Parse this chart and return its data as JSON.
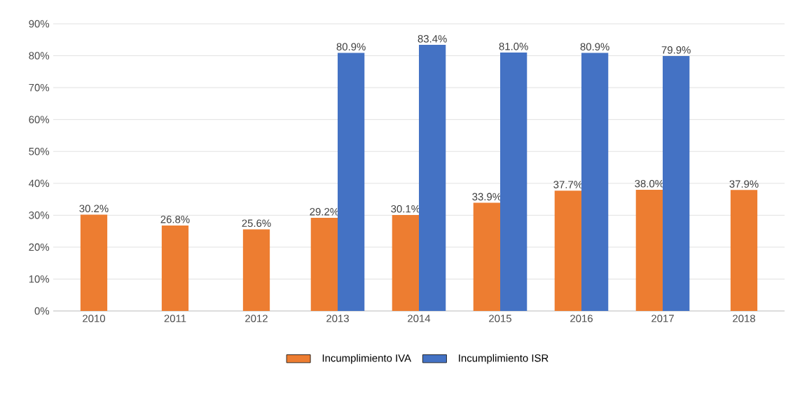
{
  "chart_data": {
    "type": "bar",
    "categories": [
      "2010",
      "2011",
      "2012",
      "2013",
      "2014",
      "2015",
      "2016",
      "2017",
      "2018"
    ],
    "series": [
      {
        "name": "Incumplimiento IVA",
        "color": "#ed7d31",
        "values": [
          30.2,
          26.8,
          25.6,
          29.2,
          30.1,
          33.9,
          37.7,
          38.0,
          37.9
        ],
        "value_labels": [
          "30.2%",
          "26.8%",
          "25.6%",
          "29.2%",
          "30.1%",
          "33.9%",
          "37.7%",
          "38.0%",
          "37.9%"
        ]
      },
      {
        "name": "Incumplimiento ISR",
        "color": "#4472c4",
        "values": [
          null,
          null,
          null,
          80.9,
          83.4,
          81.0,
          80.9,
          79.9,
          null
        ],
        "value_labels": [
          null,
          null,
          null,
          "80.9%",
          "83.4%",
          "81.0%",
          "80.9%",
          "79.9%",
          null
        ]
      }
    ],
    "ylim": [
      0,
      90
    ],
    "yticks": [
      {
        "value": 0,
        "label": "0%"
      },
      {
        "value": 10,
        "label": "10%"
      },
      {
        "value": 20,
        "label": "20%"
      },
      {
        "value": 30,
        "label": "30%"
      },
      {
        "value": 40,
        "label": "40%"
      },
      {
        "value": 50,
        "label": "50%"
      },
      {
        "value": 60,
        "label": "60%"
      },
      {
        "value": 70,
        "label": "70%"
      },
      {
        "value": 80,
        "label": "80%"
      },
      {
        "value": 90,
        "label": "90%"
      }
    ],
    "grid": "y",
    "legend": "bottom"
  }
}
